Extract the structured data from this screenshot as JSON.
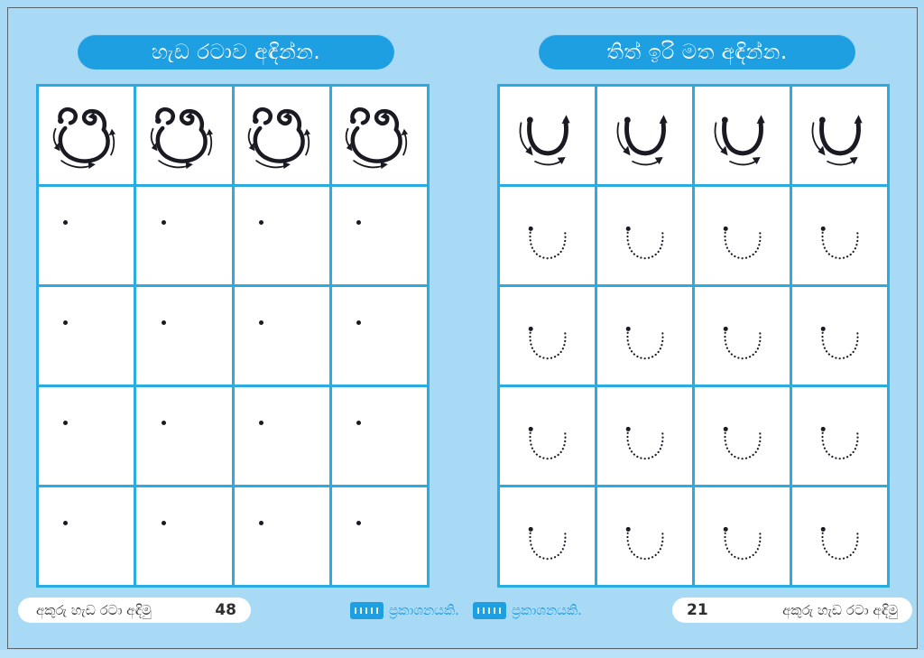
{
  "colors": {
    "background": "#a8daf5",
    "header_pill_blue": "#1e9fe2",
    "grid_line_blue": "#2aace3",
    "frame_border": "#55636e",
    "ink_black": "#1a1a22",
    "publisher_blue": "#2aa7e3"
  },
  "left_sheet": {
    "header_label": "හැඩ රටාව අඳින්න.",
    "grid": {
      "columns": 4,
      "rows": 5,
      "example_glyph": "pa-letter-trace",
      "practice_glyph": "start-dot"
    },
    "footer": {
      "series_title": "අකුරු හැඩ රටා අඳිමු",
      "page_number": "48",
      "publisher_label": "ප්‍රකාශනයකි."
    }
  },
  "right_sheet": {
    "header_label": "තිත් ඉරි මත අඳින්න.",
    "grid": {
      "columns": 4,
      "rows": 5,
      "example_glyph": "u-curve-trace",
      "practice_glyph": "u-curve-dotted"
    },
    "footer": {
      "publisher_label": "ප්‍රකාශනයකි.",
      "page_number": "21",
      "series_title": "අකුරු හැඩ රටා අඳිමු"
    }
  }
}
